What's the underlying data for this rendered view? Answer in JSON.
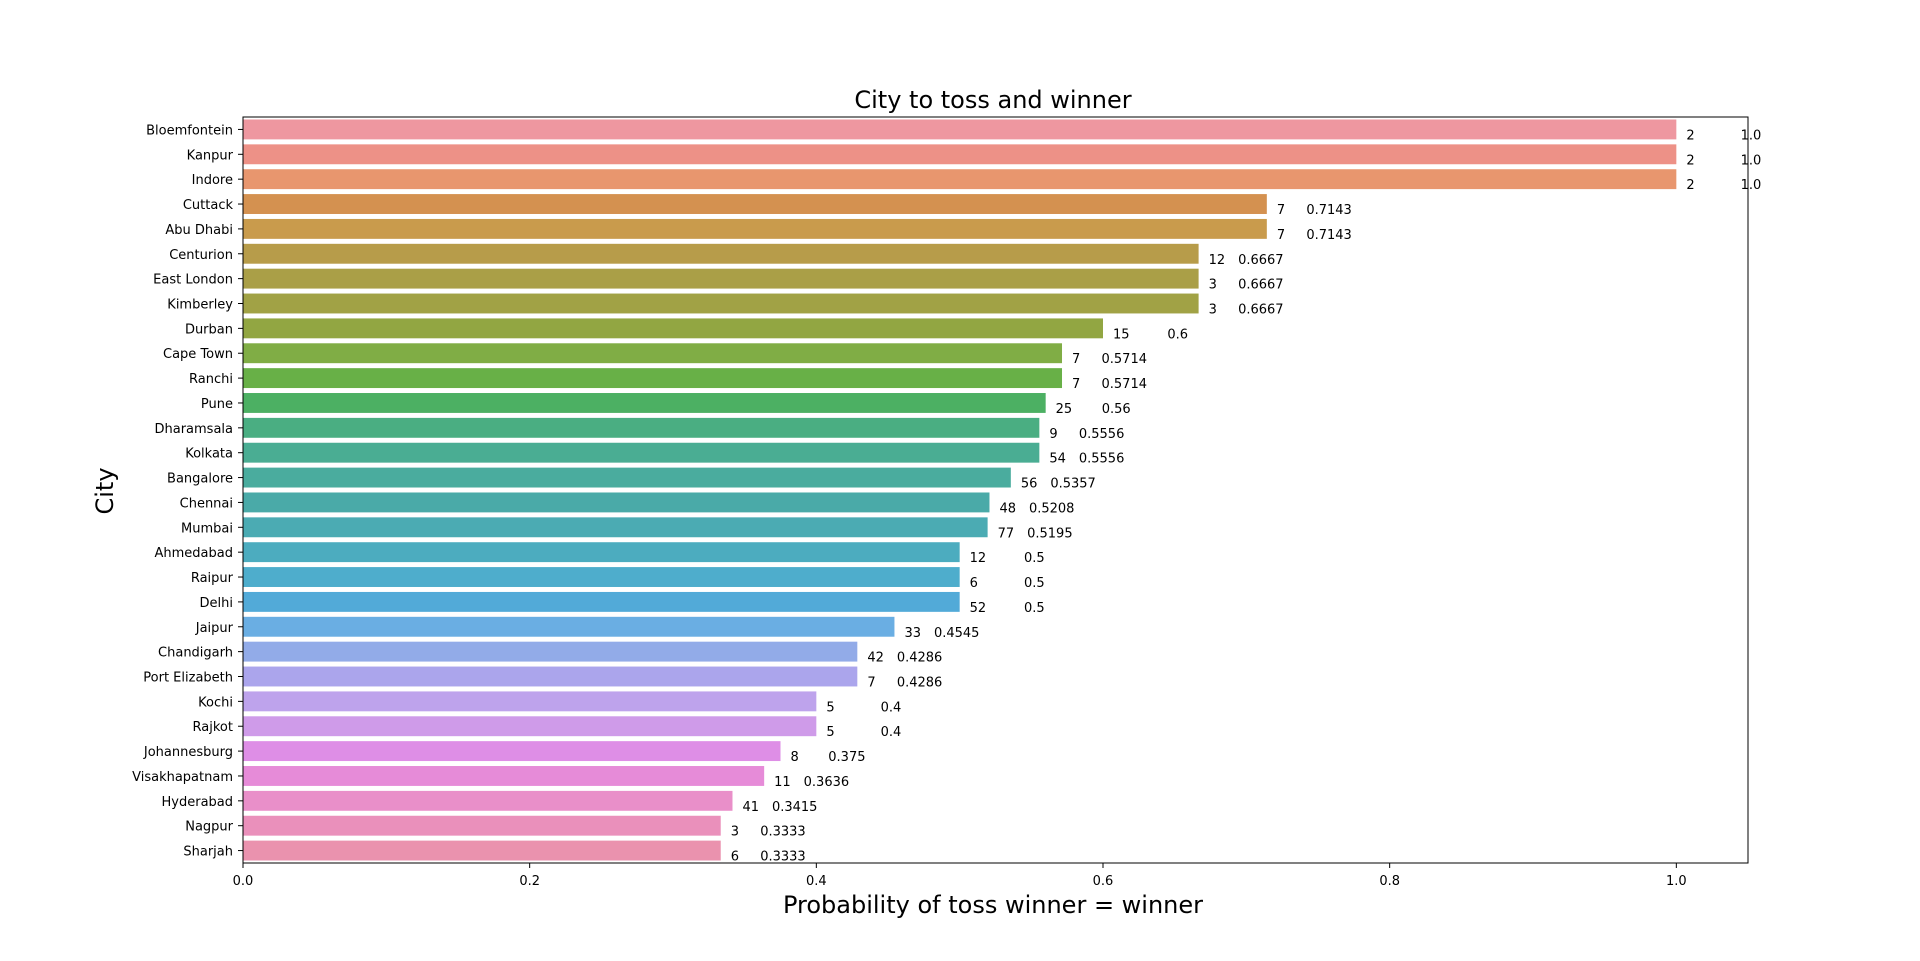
{
  "chart_data": {
    "type": "bar",
    "orientation": "horizontal",
    "title": "City to toss and winner",
    "xlabel": "Probability of toss winner = winner",
    "ylabel": "City",
    "xlim": [
      0,
      1.05
    ],
    "xticks": [
      "0.0",
      "0.2",
      "0.4",
      "0.6",
      "0.8",
      "1.0"
    ],
    "grid": false,
    "bars": [
      {
        "city": "Bloemfontein",
        "value": 1.0,
        "count": "2",
        "label": "1.0",
        "color": "#ee97a0"
      },
      {
        "city": "Kanpur",
        "value": 1.0,
        "count": "2",
        "label": "1.0",
        "color": "#ed9187"
      },
      {
        "city": "Indore",
        "value": 1.0,
        "count": "2",
        "label": "1.0",
        "color": "#e8966e"
      },
      {
        "city": "Cuttack",
        "value": 0.7143,
        "count": "7",
        "label": "0.7143",
        "color": "#d49150"
      },
      {
        "city": "Abu Dhabi",
        "value": 0.7143,
        "count": "7",
        "label": "0.7143",
        "color": "#c99b4c"
      },
      {
        "city": "Centurion",
        "value": 0.6667,
        "count": "12",
        "label": "0.6667",
        "color": "#b79c4a"
      },
      {
        "city": "East London",
        "value": 0.6667,
        "count": "3",
        "label": "0.6667",
        "color": "#aa9f47"
      },
      {
        "city": "Kimberley",
        "value": 0.6667,
        "count": "3",
        "label": "0.6667",
        "color": "#a1a245"
      },
      {
        "city": "Durban",
        "value": 0.6,
        "count": "15",
        "label": "0.6",
        "color": "#92a642"
      },
      {
        "city": "Cape Town",
        "value": 0.5714,
        "count": "7",
        "label": "0.5714",
        "color": "#80ad45"
      },
      {
        "city": "Ranchi",
        "value": 0.5714,
        "count": "7",
        "label": "0.5714",
        "color": "#68b047"
      },
      {
        "city": "Pune",
        "value": 0.56,
        "count": "25",
        "label": "0.56",
        "color": "#4cb063"
      },
      {
        "city": "Dharamsala",
        "value": 0.5556,
        "count": "9",
        "label": "0.5556",
        "color": "#4aae82"
      },
      {
        "city": "Kolkata",
        "value": 0.5556,
        "count": "54",
        "label": "0.5556",
        "color": "#4aad93"
      },
      {
        "city": "Bangalore",
        "value": 0.5357,
        "count": "56",
        "label": "0.5357",
        "color": "#4aac9e"
      },
      {
        "city": "Chennai",
        "value": 0.5208,
        "count": "48",
        "label": "0.5208",
        "color": "#4aaaa8"
      },
      {
        "city": "Mumbai",
        "value": 0.5195,
        "count": "77",
        "label": "0.5195",
        "color": "#4babb3"
      },
      {
        "city": "Ahmedabad",
        "value": 0.5,
        "count": "12",
        "label": "0.5",
        "color": "#4cacbf"
      },
      {
        "city": "Raipur",
        "value": 0.5,
        "count": "6",
        "label": "0.5",
        "color": "#4eadcc"
      },
      {
        "city": "Delhi",
        "value": 0.5,
        "count": "52",
        "label": "0.5",
        "color": "#52aad8"
      },
      {
        "city": "Jaipur",
        "value": 0.4545,
        "count": "33",
        "label": "0.4545",
        "color": "#6aaee3"
      },
      {
        "city": "Chandigarh",
        "value": 0.4286,
        "count": "42",
        "label": "0.4286",
        "color": "#92abe8"
      },
      {
        "city": "Port Elizabeth",
        "value": 0.4286,
        "count": "7",
        "label": "0.4286",
        "color": "#aba5ec"
      },
      {
        "city": "Kochi",
        "value": 0.4,
        "count": "5",
        "label": "0.4",
        "color": "#bea3ec"
      },
      {
        "city": "Rajkot",
        "value": 0.4,
        "count": "5",
        "label": "0.4",
        "color": "#cf9be9"
      },
      {
        "city": "Johannesburg",
        "value": 0.375,
        "count": "8",
        "label": "0.375",
        "color": "#de8ee6"
      },
      {
        "city": "Visakhapatnam",
        "value": 0.3636,
        "count": "11",
        "label": "0.3636",
        "color": "#e68bd8"
      },
      {
        "city": "Hyderabad",
        "value": 0.3415,
        "count": "41",
        "label": "0.3415",
        "color": "#e98fc9"
      },
      {
        "city": "Nagpur",
        "value": 0.3333,
        "count": "3",
        "label": "0.3333",
        "color": "#ea90bb"
      },
      {
        "city": "Sharjah",
        "value": 0.3333,
        "count": "6",
        "label": "0.3333",
        "color": "#ea92ae"
      }
    ]
  }
}
